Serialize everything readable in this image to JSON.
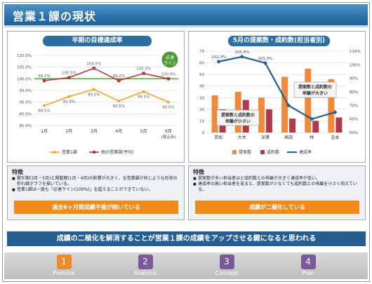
{
  "header": {
    "title": "営業１課の現状"
  },
  "left_panel": {
    "title": "半期の目標達成率",
    "legend": [
      "営業1課",
      "他の営業課(平均)"
    ],
    "callout": [
      "必達",
      "ライン"
    ],
    "chart_data": {
      "type": "line",
      "categories": [
        "1月",
        "2月",
        "3月",
        "4月",
        "5月",
        "6月"
      ],
      "x_sublabel": "(見込み)",
      "y_ticks": [
        "110.0%",
        "105.0%",
        "100.0%",
        "95.0%",
        "90.0%",
        "85.0%",
        "80.0%"
      ],
      "ylim": [
        80,
        110
      ],
      "reference_line": 100,
      "series": [
        {
          "name": "営業1課",
          "values": [
            88.5,
            92.4,
            95.5,
            90.5,
            94.5,
            90.0
          ],
          "labels": [
            "88.5%",
            "92.4%",
            "95.5%",
            "90.5%",
            "94.5%",
            "90.0%"
          ],
          "color": "#f5a12a"
        },
        {
          "name": "他の営業課(平均)",
          "values": [
            99.2,
            100.5,
            104.5,
            99.2,
            102.3,
            100.0
          ],
          "labels": [
            "99.2%",
            "100.5%",
            "104.5%",
            "99.2%",
            "102.3%",
            "100.0%"
          ],
          "color": "#b03a4a"
        }
      ]
    }
  },
  "right_panel": {
    "title": "5月の提案数・成約数(担当者別)",
    "legend": [
      "提案数",
      "成約数",
      "達成率"
    ],
    "callout_large": [
      "提案数と成約数の",
      "乖離が大きい"
    ],
    "callout_small": [
      "提案数と成約数の",
      "乖離が小さい"
    ],
    "chart_data": {
      "type": "bar",
      "categories": [
        "若松",
        "大木",
        "深澤",
        "高田",
        "林",
        "吉本"
      ],
      "y_left_ticks": [
        "70",
        "60",
        "50",
        "40",
        "30",
        "20",
        "10",
        "0"
      ],
      "y_right_ticks": [
        "110%",
        "100%",
        "90%",
        "80%",
        "70%",
        "60%",
        "50%"
      ],
      "ylim_left": [
        0,
        70
      ],
      "ylim_right": [
        50,
        110
      ],
      "series": [
        {
          "name": "提案数",
          "values": [
            32,
            35,
            30,
            48,
            55,
            46
          ],
          "color": "#f08a3a"
        },
        {
          "name": "成約数",
          "values": [
            20,
            28,
            20,
            12,
            10,
            13
          ],
          "color": "#b03a4a"
        },
        {
          "name": "達成率",
          "values": [
            102.3,
            105.9,
            101.3,
            70,
            60,
            65
          ],
          "labels": [
            "102.3%",
            "105.9%",
            "101.3%"
          ],
          "color": "#245d92"
        }
      ]
    }
  },
  "features": {
    "left": {
      "head": "特徴",
      "items": [
        "繁忙期(3月・5月)と閑散期(1月・4月)の影響が大きく、全営業課が同じような形状の折れ線グラフを描いている。",
        "営業1課は一度も「必達ライン(100%)」を超えることができていない。"
      ],
      "banner": "過去6ヶ月間成績不振が続いている"
    },
    "right": {
      "head": "特徴",
      "items": [
        "提案数が多い担当者ほど成約数との乖離が大きく達成率が低い。",
        "達成率の高い担当者を見ると、提案数が少なくても成約数との乖離を小さく抑えている。"
      ],
      "banner": "成績が二極化している"
    }
  },
  "conclusion": "成績の二極化を解消することが営業１課の成績をアップさせる鍵になると思われる",
  "steps": [
    {
      "num": "1",
      "label": "Premise"
    },
    {
      "num": "2",
      "label": "Analysis"
    },
    {
      "num": "3",
      "label": "Concept"
    },
    {
      "num": "4",
      "label": "Plan"
    }
  ]
}
